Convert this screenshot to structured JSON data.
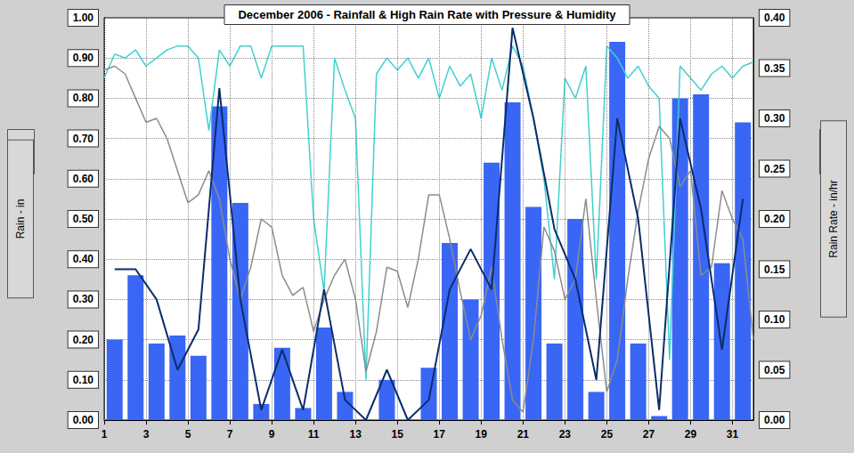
{
  "chart_data": {
    "type": "bar",
    "title": "December 2006 - Rainfall & High Rain Rate with Pressure & Humidity",
    "y_label": "Rain - in",
    "y2_label": "Rain Rate - in/hr",
    "xlim": [
      1,
      32
    ],
    "xticks": [
      1,
      3,
      5,
      7,
      9,
      11,
      13,
      15,
      17,
      19,
      21,
      23,
      25,
      27,
      29,
      31
    ],
    "ylim": [
      0,
      1
    ],
    "yticks": [
      {
        "value": 0,
        "label": "0.00"
      },
      {
        "value": 0.1,
        "label": "0.10"
      },
      {
        "value": 0.2,
        "label": "0.20"
      },
      {
        "value": 0.3,
        "label": "0.30"
      },
      {
        "value": 0.4,
        "label": "0.40"
      },
      {
        "value": 0.5,
        "label": "0.50"
      },
      {
        "value": 0.6,
        "label": "0.60"
      },
      {
        "value": 0.7,
        "label": "0.70"
      },
      {
        "value": 0.8,
        "label": "0.80"
      },
      {
        "value": 0.9,
        "label": "0.90"
      },
      {
        "value": 1,
        "label": "1.00"
      }
    ],
    "y2lim": [
      0,
      0.4
    ],
    "y2ticks": [
      {
        "value": 0,
        "label": "0.00"
      },
      {
        "value": 0.05,
        "label": "0.05"
      },
      {
        "value": 0.1,
        "label": "0.10"
      },
      {
        "value": 0.15,
        "label": "0.15"
      },
      {
        "value": 0.2,
        "label": "0.20"
      },
      {
        "value": 0.25,
        "label": "0.25"
      },
      {
        "value": 0.3,
        "label": "0.30"
      },
      {
        "value": 0.35,
        "label": "0.35"
      },
      {
        "value": 0.4,
        "label": "0.40"
      }
    ],
    "grid": true,
    "series": [
      {
        "type": "bar",
        "color": "#3a66f5",
        "x": [
          1.5,
          2.5,
          3.5,
          4.5,
          5.5,
          6.5,
          7.5,
          8.5,
          9.5,
          10.5,
          11.5,
          12.5,
          13.5,
          14.5,
          15.5,
          16.5,
          17.5,
          18.5,
          19.5,
          20.5,
          21.5,
          22.5,
          23.5,
          24.5,
          25.5,
          26.5,
          27.5,
          28.5,
          29.5,
          30.5,
          31.5
        ],
        "values": [
          0.2,
          0.36,
          0.19,
          0.21,
          0.16,
          0.78,
          0.54,
          0.04,
          0.18,
          0.03,
          0.23,
          0.07,
          0.0,
          0.1,
          0.0,
          0.13,
          0.44,
          0.3,
          0.64,
          0.79,
          0.53,
          0.19,
          0.5,
          0.07,
          0.94,
          0.19,
          0.01,
          0.8,
          0.81,
          0.39,
          0.74
        ]
      },
      {
        "type": "line",
        "color": "#40d0d0",
        "x": [
          1,
          1.5,
          2,
          2.5,
          3,
          3.5,
          4,
          4.5,
          5,
          5.5,
          6,
          6.5,
          7,
          7.5,
          8,
          8.5,
          9,
          9.5,
          10,
          10.5,
          11,
          11.5,
          12,
          12.5,
          13,
          13.5,
          14,
          14.5,
          15,
          15.5,
          16,
          16.5,
          17,
          17.5,
          18,
          18.5,
          19,
          19.5,
          20,
          20.5,
          21,
          21.5,
          22,
          22.5,
          23,
          23.5,
          24,
          24.5,
          25,
          25.5,
          26,
          26.5,
          27,
          27.5,
          28,
          28.5,
          29,
          29.5,
          30,
          30.5,
          31,
          31.5,
          32
        ],
        "values": [
          0.85,
          0.91,
          0.9,
          0.92,
          0.88,
          0.9,
          0.92,
          0.93,
          0.93,
          0.9,
          0.72,
          0.92,
          0.88,
          0.93,
          0.93,
          0.85,
          0.93,
          0.93,
          0.93,
          0.93,
          0.5,
          0.32,
          0.9,
          0.82,
          0.75,
          0.1,
          0.86,
          0.9,
          0.87,
          0.9,
          0.85,
          0.9,
          0.8,
          0.88,
          0.83,
          0.86,
          0.75,
          0.9,
          0.82,
          0.93,
          0.88,
          0.75,
          0.6,
          0.35,
          0.85,
          0.8,
          0.88,
          0.35,
          0.93,
          0.9,
          0.85,
          0.88,
          0.83,
          0.8,
          0.15,
          0.88,
          0.85,
          0.82,
          0.86,
          0.88,
          0.85,
          0.88,
          0.89
        ]
      },
      {
        "type": "line",
        "color": "#8c8c8c",
        "x": [
          1,
          1.5,
          2,
          2.5,
          3,
          3.5,
          4,
          4.5,
          5,
          5.5,
          6,
          6.5,
          7,
          7.5,
          8,
          8.5,
          9,
          9.5,
          10,
          10.5,
          11,
          11.5,
          12,
          12.5,
          13,
          13.5,
          14,
          14.5,
          15,
          15.5,
          16,
          16.5,
          17,
          17.5,
          18,
          18.5,
          19,
          19.5,
          20,
          20.5,
          21,
          21.5,
          22,
          22.5,
          23,
          23.5,
          24,
          24.5,
          25,
          25.5,
          26,
          26.5,
          27,
          27.5,
          28,
          28.5,
          29,
          29.5,
          30,
          30.5,
          31,
          31.5,
          32
        ],
        "values": [
          0.87,
          0.88,
          0.86,
          0.8,
          0.74,
          0.75,
          0.7,
          0.62,
          0.54,
          0.56,
          0.62,
          0.55,
          0.4,
          0.3,
          0.38,
          0.5,
          0.48,
          0.36,
          0.31,
          0.33,
          0.22,
          0.3,
          0.36,
          0.4,
          0.3,
          0.12,
          0.22,
          0.38,
          0.37,
          0.28,
          0.4,
          0.56,
          0.56,
          0.45,
          0.32,
          0.2,
          0.26,
          0.38,
          0.2,
          0.05,
          0.02,
          0.2,
          0.48,
          0.42,
          0.3,
          0.35,
          0.55,
          0.3,
          0.07,
          0.15,
          0.35,
          0.52,
          0.65,
          0.73,
          0.7,
          0.58,
          0.62,
          0.36,
          0.38,
          0.57,
          0.5,
          0.45,
          0.2
        ]
      },
      {
        "type": "line",
        "axis": "y2",
        "color": "#0b2d6b",
        "x": [
          1.5,
          2.5,
          3.5,
          4.5,
          5.5,
          6.5,
          7.5,
          8.5,
          9.5,
          10.5,
          11.5,
          12.5,
          13.5,
          14.5,
          15.5,
          16.5,
          17.5,
          18.5,
          19.5,
          20.5,
          21.5,
          22.5,
          23.5,
          24.5,
          25.5,
          26.5,
          27.5,
          28.5,
          29.5,
          30.5,
          31.5
        ],
        "values": [
          0.15,
          0.15,
          0.12,
          0.05,
          0.09,
          0.33,
          0.12,
          0.01,
          0.07,
          0.01,
          0.13,
          0.02,
          0.0,
          0.05,
          0.0,
          0.02,
          0.13,
          0.17,
          0.13,
          0.39,
          0.3,
          0.19,
          0.14,
          0.04,
          0.3,
          0.2,
          0.01,
          0.3,
          0.21,
          0.07,
          0.22
        ]
      }
    ]
  }
}
